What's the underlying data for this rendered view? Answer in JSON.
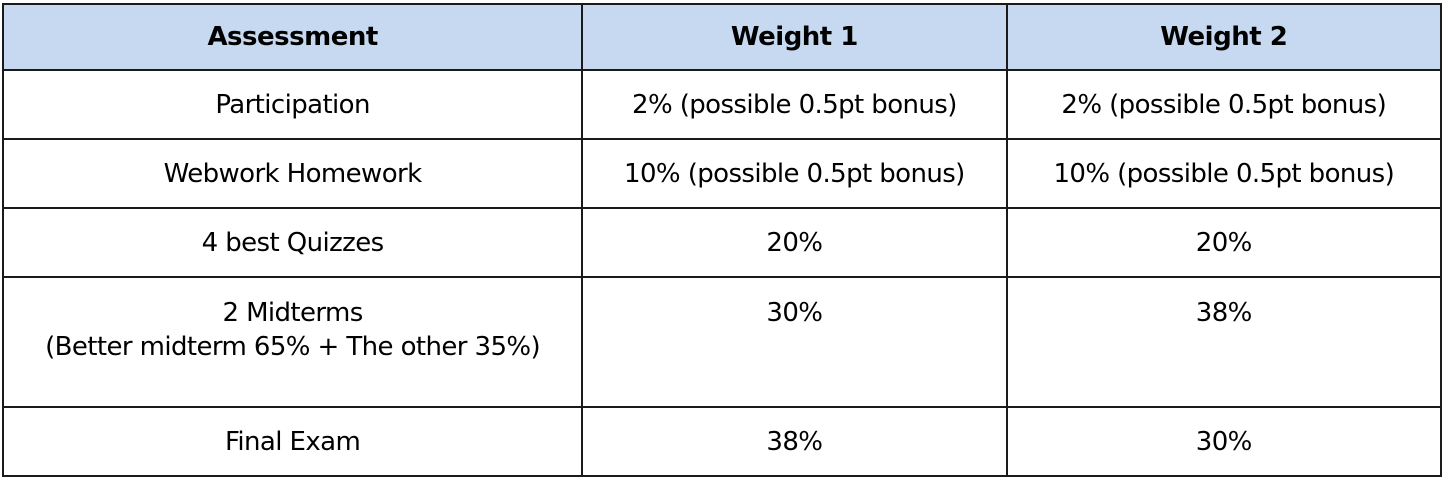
{
  "table": {
    "headers": [
      "Assessment",
      "Weight 1",
      "Weight 2"
    ],
    "rows": [
      {
        "assessment": "Participation",
        "note": "",
        "weight1": "2% (possible 0.5pt bonus)",
        "weight2": "2% (possible 0.5pt bonus)"
      },
      {
        "assessment": "Webwork Homework",
        "note": "",
        "weight1": "10% (possible 0.5pt bonus)",
        "weight2": "10% (possible 0.5pt bonus)"
      },
      {
        "assessment": "4 best Quizzes",
        "note": "",
        "weight1": "20%",
        "weight2": "20%"
      },
      {
        "assessment": "2 Midterms",
        "note": "(Better midterm 65% + The other 35%)",
        "weight1": "30%",
        "weight2": "38%"
      },
      {
        "assessment": "Final Exam",
        "note": "",
        "weight1": "38%",
        "weight2": "30%"
      }
    ]
  },
  "colors": {
    "header_bg": "#c6d9f0",
    "border": "#1a1a1a"
  }
}
